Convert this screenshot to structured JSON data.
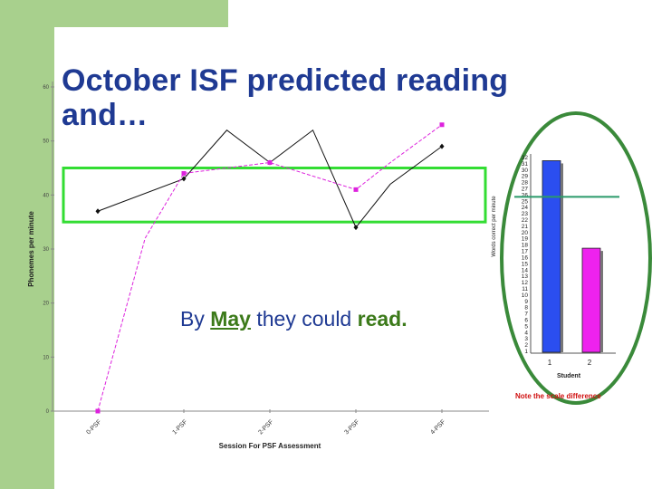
{
  "slide": {
    "title": "October ISF predicted reading and…",
    "subtitle_parts": [
      "By ",
      "May",
      " they could ",
      "read."
    ],
    "note": "Note the scale difference",
    "colors": {
      "green_band": "#33dd33",
      "title": "#1f3a93",
      "accent_green": "#a8d08d",
      "note": "#d01010"
    }
  },
  "chart_data": [
    {
      "type": "line",
      "xlabel": "Session For PSF Assessment",
      "ylabel": "Phonemes per minute",
      "categories": [
        "0-PSF",
        "1-PSF",
        "2-PSF",
        "3-PSF",
        "4-PSF"
      ],
      "ylim": [
        0,
        60
      ],
      "y_ticks": [
        "0",
        "10",
        "20",
        "30",
        "40",
        "50",
        "60"
      ],
      "series": [
        {
          "name": "",
          "color": "#111111",
          "marker": "diamond",
          "x": [
            0,
            1,
            1.5,
            2,
            2.5,
            3,
            3.4,
            4
          ],
          "values": [
            37,
            43,
            52,
            46,
            52,
            34,
            42,
            49
          ]
        },
        {
          "name": "",
          "color": "#dd22dd",
          "marker": "square",
          "x": [
            0,
            0.55,
            1,
            2,
            3,
            3.4,
            4
          ],
          "values": [
            0,
            32,
            44,
            46,
            41,
            46,
            53
          ]
        }
      ],
      "band": {
        "low": 35,
        "high": 45,
        "color": "#33dd33"
      }
    },
    {
      "type": "bar",
      "xlabel": "Student",
      "ylabel": "Words correct per minute",
      "categories": [
        "1",
        "2"
      ],
      "values": [
        31.5,
        17.5
      ],
      "colors": [
        "#2b4ef0",
        "#ee22ee"
      ],
      "ylim": [
        1,
        32
      ],
      "y_ticks": [
        "1",
        "2",
        "3",
        "4",
        "5",
        "6",
        "7",
        "8",
        "9",
        "10",
        "11",
        "12",
        "13",
        "14",
        "15",
        "16",
        "17",
        "18",
        "19",
        "20",
        "21",
        "22",
        "23",
        "24",
        "25",
        "26",
        "27",
        "28",
        "29",
        "30",
        "31",
        "32"
      ],
      "reference_line": {
        "value": 26,
        "color": "#2a9a6a"
      }
    }
  ]
}
